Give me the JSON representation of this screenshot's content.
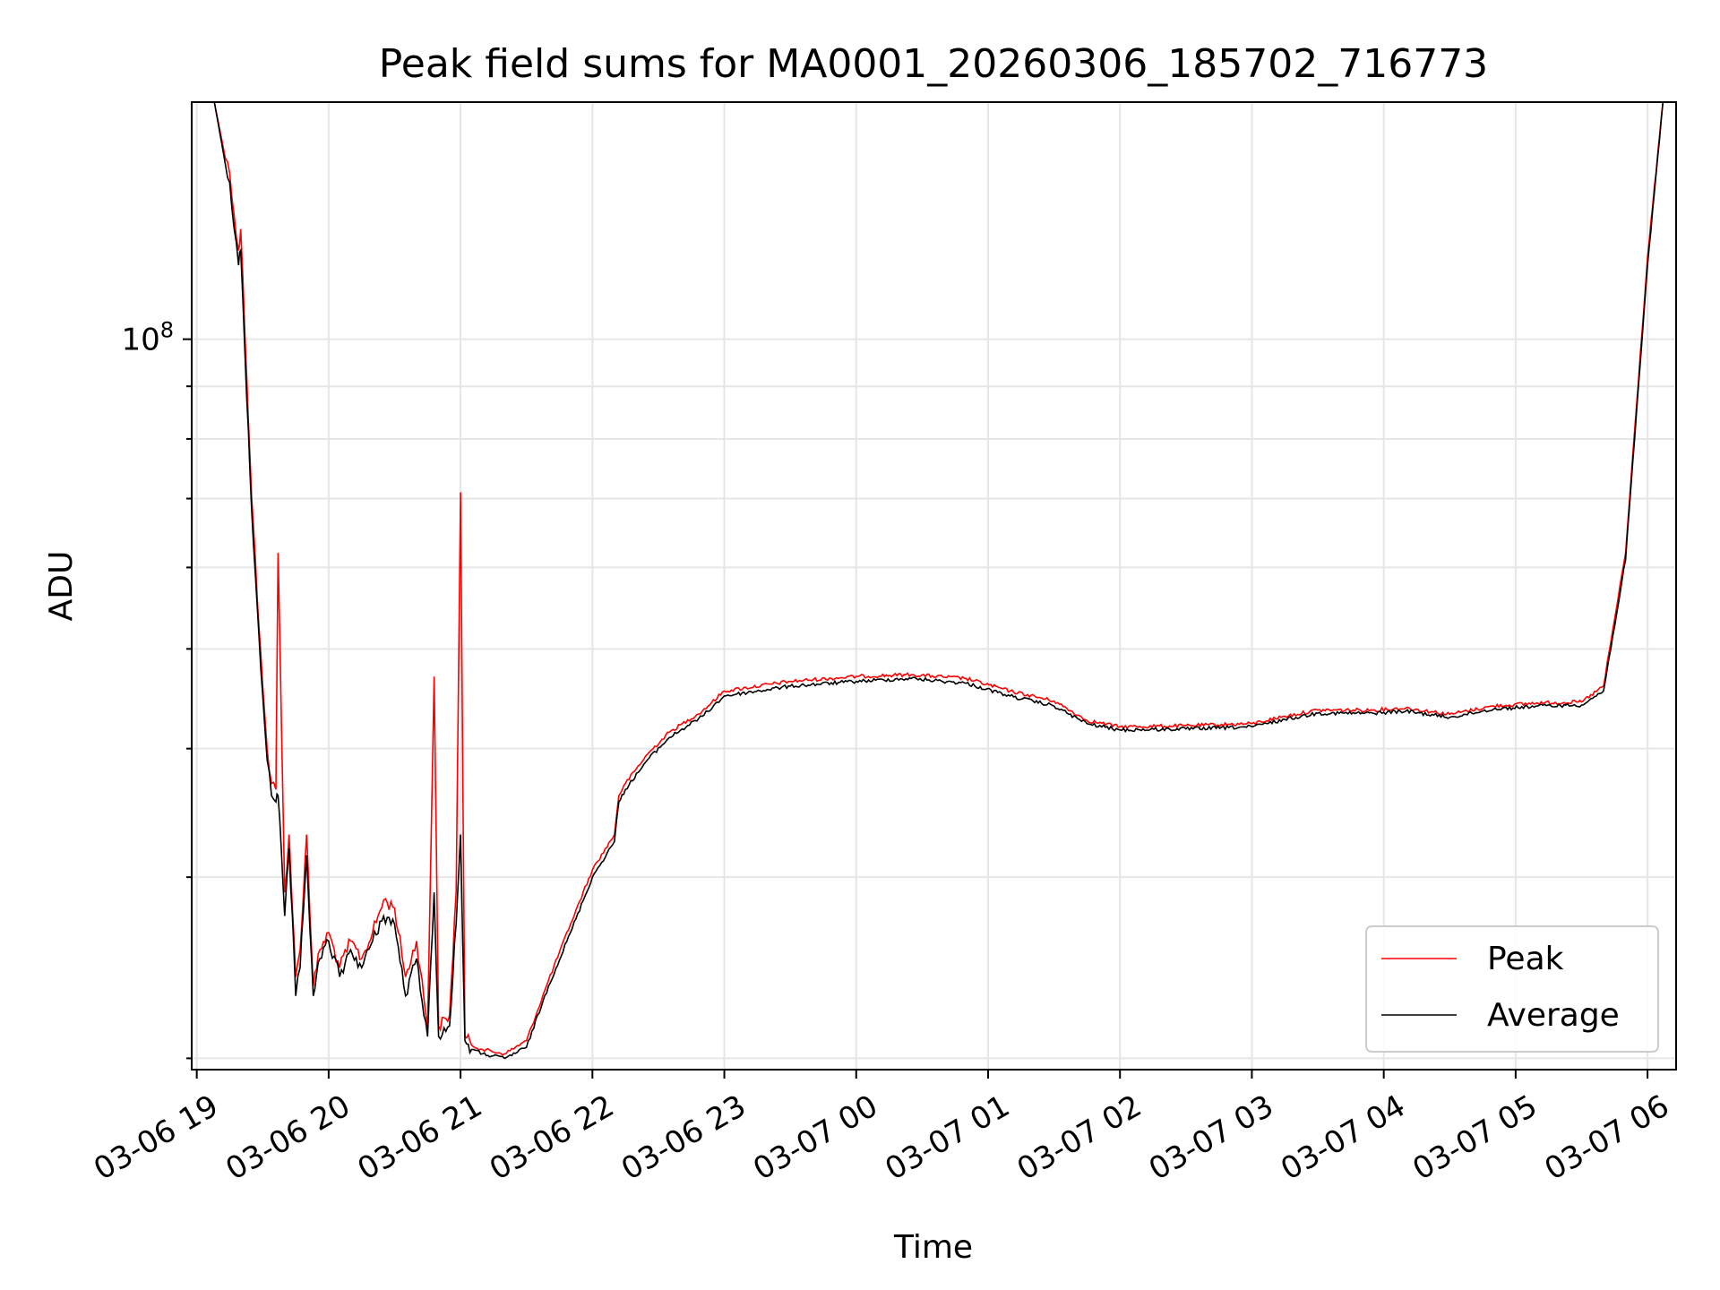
{
  "chart_data": {
    "type": "line",
    "title": "Peak field sums for MA0001_20260306_185702_716773",
    "xlabel": "Time",
    "ylabel": "ADU",
    "y_scale": "log",
    "ylim": [
      19500000,
      170000000
    ],
    "xlim": [
      "2026-03-06 18:57:42",
      "2026-03-07 06:13:00"
    ],
    "x_ticks": [
      "03-06 19",
      "03-06 20",
      "03-06 21",
      "03-06 22",
      "03-06 23",
      "03-07 00",
      "03-07 01",
      "03-07 02",
      "03-07 03",
      "03-07 04",
      "03-07 05",
      "03-07 06"
    ],
    "y_tick_major": {
      "label": "10",
      "exponent": "8"
    },
    "grid": true,
    "legend_position": "lower-right",
    "colors": {
      "Peak": "#ff0000",
      "Average": "#000000"
    },
    "series": [
      {
        "name": "Peak",
        "x": [
          "2026-03-06 18:58",
          "2026-03-06 19:08",
          "2026-03-06 19:13",
          "2026-03-06 19:15",
          "2026-03-06 19:17",
          "2026-03-06 19:19",
          "2026-03-06 19:20",
          "2026-03-06 19:22",
          "2026-03-06 19:25",
          "2026-03-06 19:30",
          "2026-03-06 19:32",
          "2026-03-06 19:34",
          "2026-03-06 19:36",
          "2026-03-06 19:37",
          "2026-03-06 19:40",
          "2026-03-06 19:42",
          "2026-03-06 19:45",
          "2026-03-06 19:47",
          "2026-03-06 19:50",
          "2026-03-06 19:53",
          "2026-03-06 19:56",
          "2026-03-06 20:00",
          "2026-03-06 20:05",
          "2026-03-06 20:10",
          "2026-03-06 20:15",
          "2026-03-06 20:20",
          "2026-03-06 20:25",
          "2026-03-06 20:30",
          "2026-03-06 20:35",
          "2026-03-06 20:40",
          "2026-03-06 20:45",
          "2026-03-06 20:48",
          "2026-03-06 20:50",
          "2026-03-06 20:55",
          "2026-03-06 20:58",
          "2026-03-06 21:00",
          "2026-03-06 21:02",
          "2026-03-06 21:05",
          "2026-03-06 21:10",
          "2026-03-06 21:20",
          "2026-03-06 21:30",
          "2026-03-06 21:40",
          "2026-03-06 21:50",
          "2026-03-06 22:00",
          "2026-03-06 22:10",
          "2026-03-06 22:12",
          "2026-03-06 22:15",
          "2026-03-06 22:25",
          "2026-03-06 22:35",
          "2026-03-06 22:50",
          "2026-03-06 23:00",
          "2026-03-06 23:30",
          "2026-03-07 00:00",
          "2026-03-07 00:25",
          "2026-03-07 00:50",
          "2026-03-07 01:10",
          "2026-03-07 01:30",
          "2026-03-07 01:45",
          "2026-03-07 02:00",
          "2026-03-07 02:30",
          "2026-03-07 03:00",
          "2026-03-07 03:15",
          "2026-03-07 03:30",
          "2026-03-07 03:55",
          "2026-03-07 04:10",
          "2026-03-07 04:30",
          "2026-03-07 04:50",
          "2026-03-07 05:10",
          "2026-03-07 05:30",
          "2026-03-07 05:40",
          "2026-03-07 05:50",
          "2026-03-07 06:00",
          "2026-03-07 06:07"
        ],
        "y": [
          170000000,
          170000000,
          150000000,
          145000000,
          132000000,
          122000000,
          128000000,
          100000000,
          70000000,
          46000000,
          40000000,
          37000000,
          36500000,
          62000000,
          29000000,
          33000000,
          24000000,
          25500000,
          33000000,
          23500000,
          25500000,
          26500000,
          24500000,
          26000000,
          25000000,
          26500000,
          28500000,
          28000000,
          24000000,
          26000000,
          21500000,
          47000000,
          21500000,
          22000000,
          29000000,
          71000000,
          21000000,
          20600000,
          20400000,
          20200000,
          20800000,
          23800000,
          27000000,
          30500000,
          33000000,
          36000000,
          37000000,
          39500000,
          41500000,
          43500000,
          45500000,
          46500000,
          47000000,
          47200000,
          46800000,
          45500000,
          44500000,
          42600000,
          42000000,
          42100000,
          42300000,
          43000000,
          43600000,
          43600000,
          43800000,
          43200000,
          44000000,
          44300000,
          44400000,
          46000000,
          62000000,
          120000000,
          170000000
        ]
      },
      {
        "name": "Average",
        "x": [
          "2026-03-06 18:58",
          "2026-03-06 19:08",
          "2026-03-06 19:13",
          "2026-03-06 19:15",
          "2026-03-06 19:17",
          "2026-03-06 19:19",
          "2026-03-06 19:20",
          "2026-03-06 19:22",
          "2026-03-06 19:25",
          "2026-03-06 19:30",
          "2026-03-06 19:32",
          "2026-03-06 19:34",
          "2026-03-06 19:36",
          "2026-03-06 19:37",
          "2026-03-06 19:40",
          "2026-03-06 19:42",
          "2026-03-06 19:45",
          "2026-03-06 19:47",
          "2026-03-06 19:50",
          "2026-03-06 19:53",
          "2026-03-06 19:56",
          "2026-03-06 20:00",
          "2026-03-06 20:05",
          "2026-03-06 20:10",
          "2026-03-06 20:15",
          "2026-03-06 20:20",
          "2026-03-06 20:25",
          "2026-03-06 20:30",
          "2026-03-06 20:35",
          "2026-03-06 20:40",
          "2026-03-06 20:45",
          "2026-03-06 20:48",
          "2026-03-06 20:50",
          "2026-03-06 20:55",
          "2026-03-06 20:58",
          "2026-03-06 21:00",
          "2026-03-06 21:02",
          "2026-03-06 21:05",
          "2026-03-06 21:10",
          "2026-03-06 21:20",
          "2026-03-06 21:30",
          "2026-03-06 21:40",
          "2026-03-06 21:50",
          "2026-03-06 22:00",
          "2026-03-06 22:10",
          "2026-03-06 22:12",
          "2026-03-06 22:15",
          "2026-03-06 22:25",
          "2026-03-06 22:35",
          "2026-03-06 22:50",
          "2026-03-06 23:00",
          "2026-03-06 23:30",
          "2026-03-07 00:00",
          "2026-03-07 00:25",
          "2026-03-07 00:50",
          "2026-03-07 01:10",
          "2026-03-07 01:30",
          "2026-03-07 01:45",
          "2026-03-07 02:00",
          "2026-03-07 02:30",
          "2026-03-07 03:00",
          "2026-03-07 03:15",
          "2026-03-07 03:30",
          "2026-03-07 03:55",
          "2026-03-07 04:10",
          "2026-03-07 04:30",
          "2026-03-07 04:50",
          "2026-03-07 05:10",
          "2026-03-07 05:30",
          "2026-03-07 05:40",
          "2026-03-07 05:50",
          "2026-03-07 06:00",
          "2026-03-07 06:07"
        ],
        "y": [
          170000000,
          170000000,
          148000000,
          142000000,
          128000000,
          118000000,
          122000000,
          96000000,
          68000000,
          45000000,
          39000000,
          36000000,
          35500000,
          36000000,
          27500000,
          32000000,
          23000000,
          24500000,
          31500000,
          23000000,
          25000000,
          26000000,
          24000000,
          25500000,
          24500000,
          26000000,
          27500000,
          27000000,
          23000000,
          25000000,
          21000000,
          29000000,
          21000000,
          21500000,
          27000000,
          33000000,
          20800000,
          20400000,
          20200000,
          20000000,
          20500000,
          23500000,
          26500000,
          30000000,
          32500000,
          35500000,
          36500000,
          39000000,
          41000000,
          43000000,
          45000000,
          46000000,
          46500000,
          46800000,
          46300000,
          45000000,
          44000000,
          42300000,
          41700000,
          41800000,
          42000000,
          42700000,
          43300000,
          43300000,
          43500000,
          42900000,
          43700000,
          44000000,
          44100000,
          45500000,
          61000000,
          118000000,
          170000000
        ]
      }
    ]
  }
}
